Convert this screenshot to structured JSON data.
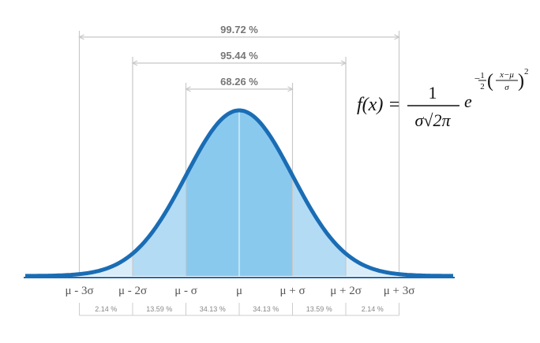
{
  "brackets": [
    "99.72 %",
    "95.44 %",
    "68.26 %"
  ],
  "sigma_labels": [
    "μ - 3σ",
    "μ - 2σ",
    "μ - σ",
    "μ",
    "μ + σ",
    "μ + 2σ",
    "μ + 3σ"
  ],
  "segment_percents": [
    "2.14 %",
    "13.59 %",
    "34.13 %",
    "34.13 %",
    "13.59 %",
    "2.14 %"
  ],
  "formula": {
    "lhs": "f(x) =",
    "numerator": "1",
    "denominator": "σ√2π",
    "base": "e",
    "exp_sign": "−",
    "exp_num": "1",
    "exp_den": "2",
    "frac_num": "x−μ",
    "frac_den": "σ",
    "power": "2"
  }
}
